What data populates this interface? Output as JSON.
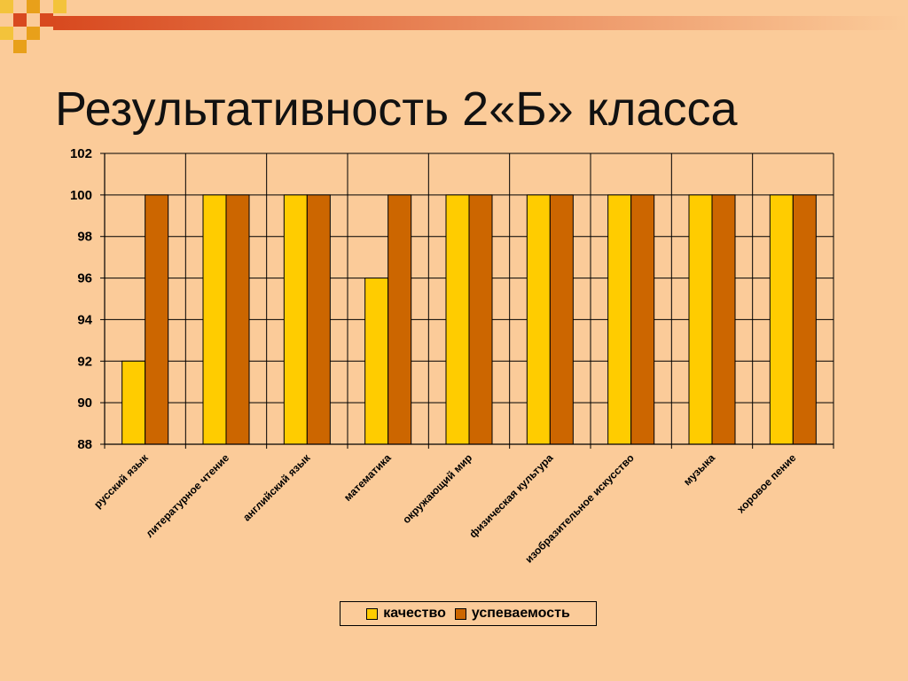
{
  "title": "Результативность 2«Б» класса",
  "colors": {
    "background": "#FBCB99",
    "deco_red": "#D8491F",
    "deco_gold": "#E8A01A",
    "deco_yellow": "#F3C33B"
  },
  "chart_data": {
    "type": "bar",
    "categories": [
      "русский язык",
      "литературное чтение",
      "английский язык",
      "математика",
      "окружающий мир",
      "физическая культура",
      "изобразительное искусство",
      "музыка",
      "хоровое пение"
    ],
    "series": [
      {
        "name": "качество",
        "color": "#FFCC00",
        "values": [
          92,
          100,
          100,
          96,
          100,
          100,
          100,
          100,
          100
        ]
      },
      {
        "name": "успеваемость",
        "color": "#CC6600",
        "values": [
          100,
          100,
          100,
          100,
          100,
          100,
          100,
          100,
          100
        ]
      }
    ],
    "yticks": [
      "88",
      "90",
      "92",
      "94",
      "96",
      "98",
      "100",
      "102"
    ],
    "ylim": [
      88,
      102
    ],
    "grid": true,
    "legend_position": "bottom"
  }
}
